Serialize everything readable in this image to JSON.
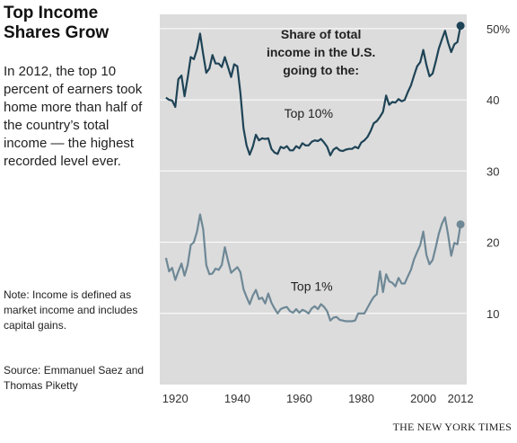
{
  "header": {
    "title": "Top Income Shares Grow",
    "subtitle": "In 2012, the top 10 percent of earners took home more than half of the country’s total income — the highest recorded level ever."
  },
  "notes": {
    "note": "Note: Income is defined as market income and includes capital gains.",
    "source": "Source: Emmanuel Saez and Thomas Piketty"
  },
  "credit": "THE NEW YORK TIMES",
  "chart_data": {
    "type": "line",
    "title": "",
    "annotation": [
      "Share of total",
      "income in the U.S.",
      "going to the:"
    ],
    "xlabel": "",
    "ylabel": "",
    "xlim": [
      1915,
      2014
    ],
    "ylim": [
      0,
      52
    ],
    "x_ticks": [
      {
        "value": 1920,
        "label": "1920"
      },
      {
        "value": 1940,
        "label": "1940"
      },
      {
        "value": 1960,
        "label": "1960"
      },
      {
        "value": 1980,
        "label": "1980"
      },
      {
        "value": 2000,
        "label": "2000"
      },
      {
        "value": 2012,
        "label": "2012"
      }
    ],
    "y_ticks": [
      {
        "value": 50,
        "label": "50%"
      },
      {
        "value": 40,
        "label": "40"
      },
      {
        "value": 30,
        "label": "30"
      },
      {
        "value": 20,
        "label": "20"
      },
      {
        "value": 10,
        "label": "10"
      }
    ],
    "grid": true,
    "colors": {
      "plot_bg": "#dcdcdc",
      "grid": "#ffffff",
      "top10": "#1e4356",
      "top1": "#6e8896"
    },
    "series": [
      {
        "name": "Top 10%",
        "x": [
          1917,
          1918,
          1919,
          1920,
          1921,
          1922,
          1923,
          1924,
          1925,
          1926,
          1927,
          1928,
          1929,
          1930,
          1931,
          1932,
          1933,
          1934,
          1935,
          1936,
          1937,
          1938,
          1939,
          1940,
          1941,
          1942,
          1943,
          1944,
          1945,
          1946,
          1947,
          1948,
          1949,
          1950,
          1951,
          1952,
          1953,
          1954,
          1955,
          1956,
          1957,
          1958,
          1959,
          1960,
          1961,
          1962,
          1963,
          1964,
          1965,
          1966,
          1967,
          1968,
          1969,
          1970,
          1971,
          1972,
          1973,
          1974,
          1975,
          1976,
          1977,
          1978,
          1979,
          1980,
          1981,
          1982,
          1983,
          1984,
          1985,
          1986,
          1987,
          1988,
          1989,
          1990,
          1991,
          1992,
          1993,
          1994,
          1995,
          1996,
          1997,
          1998,
          1999,
          2000,
          2001,
          2002,
          2003,
          2004,
          2005,
          2006,
          2007,
          2008,
          2009,
          2010,
          2011,
          2012
        ],
        "values": [
          40.3,
          40.0,
          39.9,
          39.0,
          42.9,
          43.4,
          40.5,
          43.1,
          46.0,
          45.7,
          47.1,
          49.3,
          46.4,
          43.8,
          44.4,
          46.3,
          45.1,
          45.1,
          44.6,
          46.0,
          44.6,
          43.2,
          45.0,
          44.7,
          41.0,
          36.0,
          33.6,
          32.3,
          33.4,
          35.1,
          34.3,
          34.6,
          34.5,
          34.6,
          33.1,
          32.6,
          32.4,
          33.4,
          33.2,
          33.5,
          32.9,
          32.9,
          33.5,
          33.2,
          33.9,
          33.6,
          33.6,
          34.1,
          34.3,
          34.2,
          34.5,
          34.0,
          33.4,
          32.2,
          33.0,
          33.3,
          32.9,
          32.8,
          33.0,
          33.1,
          33.1,
          33.4,
          33.2,
          34.0,
          34.3,
          34.8,
          35.6,
          36.7,
          37.0,
          37.6,
          38.3,
          40.6,
          39.3,
          39.7,
          39.6,
          40.1,
          39.8,
          40.0,
          41.1,
          42.0,
          43.4,
          44.7,
          45.3,
          47.0,
          44.9,
          43.3,
          43.7,
          45.4,
          47.2,
          48.5,
          49.7,
          48.0,
          46.7,
          47.8,
          48.1,
          50.4
        ]
      },
      {
        "name": "Top 1%",
        "x": [
          1917,
          1918,
          1919,
          1920,
          1921,
          1922,
          1923,
          1924,
          1925,
          1926,
          1927,
          1928,
          1929,
          1930,
          1931,
          1932,
          1933,
          1934,
          1935,
          1936,
          1937,
          1938,
          1939,
          1940,
          1941,
          1942,
          1943,
          1944,
          1945,
          1946,
          1947,
          1948,
          1949,
          1950,
          1951,
          1952,
          1953,
          1954,
          1955,
          1956,
          1957,
          1958,
          1959,
          1960,
          1961,
          1962,
          1963,
          1964,
          1965,
          1966,
          1967,
          1968,
          1969,
          1970,
          1971,
          1972,
          1973,
          1974,
          1975,
          1976,
          1977,
          1978,
          1979,
          1980,
          1981,
          1982,
          1983,
          1984,
          1985,
          1986,
          1987,
          1988,
          1989,
          1990,
          1991,
          1992,
          1993,
          1994,
          1995,
          1996,
          1997,
          1998,
          1999,
          2000,
          2001,
          2002,
          2003,
          2004,
          2005,
          2006,
          2007,
          2008,
          2009,
          2010,
          2011,
          2012
        ],
        "values": [
          17.8,
          15.9,
          16.4,
          14.7,
          15.9,
          17.0,
          15.3,
          16.8,
          19.6,
          20.0,
          21.5,
          23.9,
          21.8,
          16.8,
          15.5,
          15.6,
          16.3,
          16.1,
          16.8,
          19.3,
          17.4,
          15.7,
          16.1,
          16.5,
          15.8,
          13.4,
          12.3,
          11.3,
          12.5,
          13.3,
          12.0,
          12.2,
          11.4,
          12.8,
          11.5,
          10.7,
          10.0,
          10.6,
          10.8,
          10.9,
          10.3,
          10.1,
          10.6,
          10.1,
          10.5,
          10.3,
          10.0,
          10.7,
          11.0,
          10.6,
          11.3,
          10.9,
          10.3,
          9.0,
          9.4,
          9.5,
          9.1,
          9.0,
          8.9,
          8.9,
          8.9,
          9.0,
          10.0,
          10.0,
          10.0,
          10.8,
          11.6,
          12.3,
          12.7,
          15.9,
          13.0,
          15.5,
          14.5,
          14.3,
          13.8,
          15.0,
          14.2,
          14.2,
          15.2,
          16.1,
          17.6,
          18.6,
          19.6,
          21.5,
          18.2,
          16.9,
          17.5,
          19.3,
          21.2,
          22.6,
          23.5,
          21.0,
          18.1,
          19.9,
          19.7,
          22.5
        ]
      }
    ],
    "series_labels": [
      {
        "series": 0,
        "text": "Top 10%",
        "x": 1963,
        "y": 37.5
      },
      {
        "series": 1,
        "text": "Top 1%",
        "x": 1964,
        "y": 13.2
      }
    ],
    "endpoints": [
      {
        "series": 0,
        "x": 2012,
        "y": 50.4
      },
      {
        "series": 1,
        "x": 2012,
        "y": 22.5
      }
    ]
  }
}
